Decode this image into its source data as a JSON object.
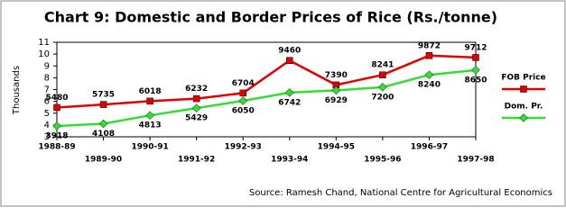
{
  "chart_data": {
    "type": "line",
    "title": "Chart 9: Domestic and Border Prices of Rice (Rs./tonne)",
    "y_label": "Thousands",
    "source": "Source: Ramesh Chand, National Centre for Agricultural Economics",
    "categories": [
      "1988-89",
      "1989-90",
      "1990-91",
      "1991-92",
      "1992-93",
      "1993-94",
      "1994-95",
      "1995-96",
      "1996-97",
      "1997-98"
    ],
    "series": [
      {
        "name": "FOB Price",
        "color": "#e00000",
        "values": [
          5.48,
          5.735,
          6.018,
          6.232,
          6.704,
          9.46,
          7.39,
          8.241,
          9.872,
          9.712
        ],
        "value_labels": [
          "5480",
          "5735",
          "6018",
          "6232",
          "6704",
          "9460",
          "7390",
          "8241",
          "9872",
          "9712"
        ]
      },
      {
        "name": "Dom. Pr.",
        "color": "#33dd33",
        "values": [
          3.918,
          4.108,
          4.813,
          5.429,
          6.05,
          6.742,
          6.929,
          7.2,
          8.24,
          8.65
        ],
        "value_labels": [
          "3918",
          "4108",
          "4813",
          "5429",
          "6050",
          "6742",
          "6929",
          "7200",
          "8240",
          "8650"
        ]
      }
    ],
    "ylim": [
      3,
      11
    ],
    "yticks": [
      3,
      4,
      5,
      6,
      7,
      8,
      9,
      10,
      11
    ],
    "legend": "right"
  }
}
